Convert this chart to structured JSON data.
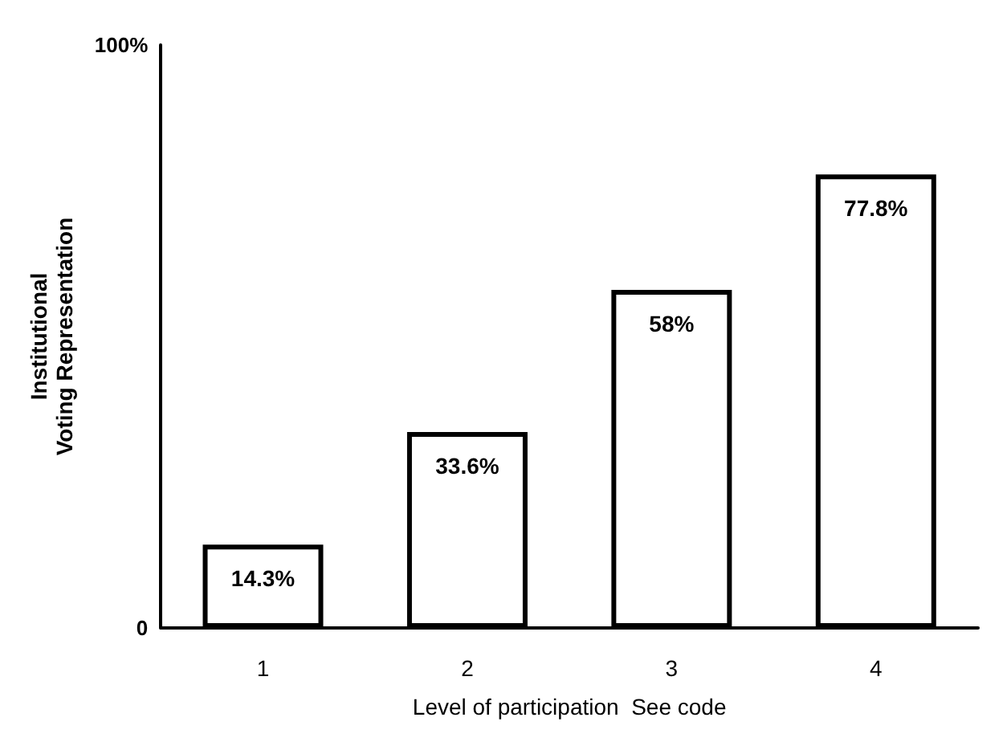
{
  "chart_data": {
    "type": "bar",
    "xlabel": "Level of participation  See code",
    "ylabel": "Institutional\nVoting Representation",
    "categories": [
      "1",
      "2",
      "3",
      "4"
    ],
    "values": [
      14.3,
      33.6,
      58,
      77.8
    ],
    "value_labels": [
      "14.3%",
      "33.6%",
      "58%",
      "77.8%"
    ],
    "color": "#ffffff",
    "ylim": [
      0,
      100
    ],
    "yticks": [
      {
        "value": 0,
        "label": "0"
      },
      {
        "value": 100,
        "label": "100%"
      }
    ],
    "grid": false
  }
}
